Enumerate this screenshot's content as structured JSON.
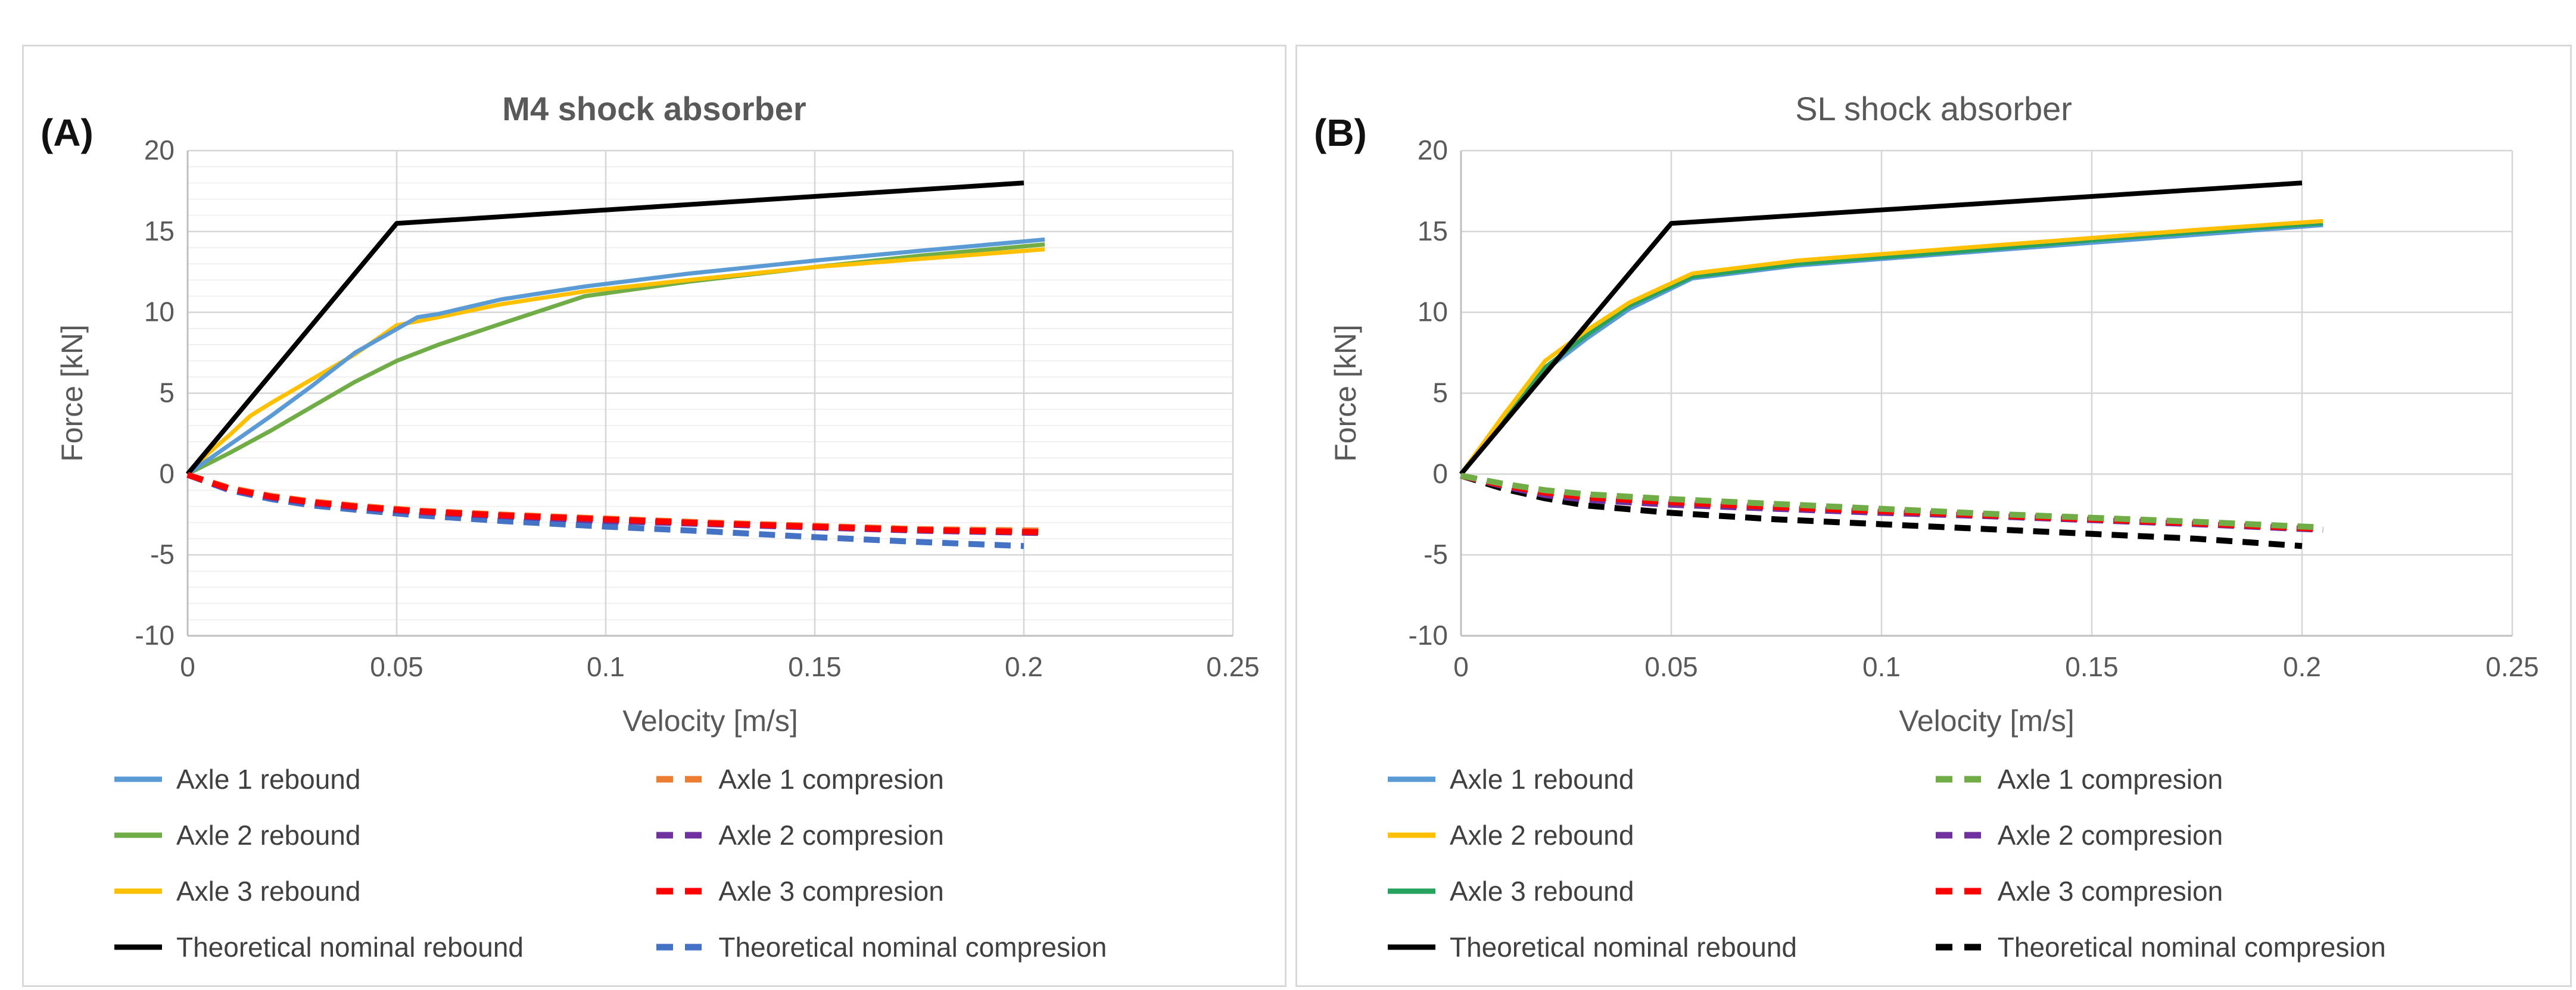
{
  "figure": {
    "background": "#ffffff",
    "panel_border_color": "#d9d9d9"
  },
  "chart_data": [
    {
      "id": "m4",
      "panel_label": "(A)",
      "type": "line",
      "title": "M4 shock absorber",
      "title_bold": true,
      "xlabel": "Velocity [m/s]",
      "ylabel": "Force [kN]",
      "xlim": [
        0,
        0.25
      ],
      "ylim": [
        -10,
        20
      ],
      "xticks": [
        0,
        0.05,
        0.1,
        0.15,
        0.2,
        0.25
      ],
      "xtick_labels": [
        "0",
        "0.05",
        "0.1",
        "0.15",
        "0.2",
        "0.25"
      ],
      "yticks": [
        20,
        15,
        10,
        5,
        0,
        -5,
        -10
      ],
      "ytick_labels": [
        "20",
        "15",
        "10",
        "5",
        "0",
        "-5",
        "-10"
      ],
      "grid": {
        "major": true,
        "minor_horizontal": true,
        "minor_step": 1,
        "legend_position": "bottom-two-columns"
      },
      "series": [
        {
          "id": "axle2-rebound",
          "name": "Axle 2 rebound",
          "color": "#70AD47",
          "style": "solid",
          "width": 7,
          "points": [
            [
              0,
              0
            ],
            [
              0.01,
              1.3
            ],
            [
              0.02,
              2.7
            ],
            [
              0.03,
              4.2
            ],
            [
              0.04,
              5.7
            ],
            [
              0.05,
              7.0
            ],
            [
              0.06,
              8.0
            ],
            [
              0.075,
              9.3
            ],
            [
              0.095,
              11.0
            ],
            [
              0.12,
              11.9
            ],
            [
              0.15,
              12.8
            ],
            [
              0.175,
              13.5
            ],
            [
              0.205,
              14.2
            ]
          ]
        },
        {
          "id": "axle3-rebound",
          "name": "Axle 3 rebound",
          "color": "#FFC000",
          "style": "solid",
          "width": 7,
          "points": [
            [
              0,
              0
            ],
            [
              0.005,
              1.3
            ],
            [
              0.01,
              2.4
            ],
            [
              0.015,
              3.6
            ],
            [
              0.02,
              4.4
            ],
            [
              0.03,
              5.9
            ],
            [
              0.04,
              7.4
            ],
            [
              0.05,
              9.2
            ],
            [
              0.06,
              9.7
            ],
            [
              0.075,
              10.5
            ],
            [
              0.095,
              11.3
            ],
            [
              0.12,
              12.0
            ],
            [
              0.15,
              12.8
            ],
            [
              0.175,
              13.3
            ],
            [
              0.205,
              13.9
            ]
          ]
        },
        {
          "id": "axle1-rebound",
          "name": "Axle 1 rebound",
          "color": "#5B9BD5",
          "style": "solid",
          "width": 7,
          "points": [
            [
              0,
              0
            ],
            [
              0.005,
              0.9
            ],
            [
              0.01,
              1.8
            ],
            [
              0.015,
              2.7
            ],
            [
              0.02,
              3.6
            ],
            [
              0.03,
              5.5
            ],
            [
              0.04,
              7.5
            ],
            [
              0.055,
              9.7
            ],
            [
              0.06,
              9.9
            ],
            [
              0.075,
              10.8
            ],
            [
              0.095,
              11.6
            ],
            [
              0.12,
              12.4
            ],
            [
              0.15,
              13.2
            ],
            [
              0.175,
              13.8
            ],
            [
              0.205,
              14.5
            ]
          ]
        },
        {
          "id": "theoretical-rebound",
          "name": "Theoretical nominal rebound",
          "color": "#000000",
          "style": "solid",
          "width": 8,
          "points": [
            [
              0,
              0
            ],
            [
              0.05,
              15.5
            ],
            [
              0.2,
              18
            ]
          ]
        },
        {
          "id": "theoretical-compresion",
          "name": "Theoretical nominal compresion",
          "color": "#4472C4",
          "style": "dashed",
          "width": 10,
          "points": [
            [
              0,
              -0.05
            ],
            [
              0.01,
              -1.0
            ],
            [
              0.02,
              -1.55
            ],
            [
              0.03,
              -1.95
            ],
            [
              0.04,
              -2.2
            ],
            [
              0.055,
              -2.55
            ],
            [
              0.075,
              -2.9
            ],
            [
              0.1,
              -3.25
            ],
            [
              0.125,
              -3.55
            ],
            [
              0.15,
              -3.9
            ],
            [
              0.175,
              -4.2
            ],
            [
              0.2,
              -4.45
            ]
          ]
        },
        {
          "id": "axle2-compresion",
          "name": "Axle 2 compresion",
          "color": "#7030A0",
          "style": "dashed",
          "width": 10,
          "points": [
            [
              0,
              -0.05
            ],
            [
              0.01,
              -0.95
            ],
            [
              0.02,
              -1.45
            ],
            [
              0.03,
              -1.8
            ],
            [
              0.04,
              -2.05
            ],
            [
              0.055,
              -2.35
            ],
            [
              0.075,
              -2.6
            ],
            [
              0.1,
              -2.9
            ],
            [
              0.125,
              -3.1
            ],
            [
              0.15,
              -3.3
            ],
            [
              0.175,
              -3.5
            ],
            [
              0.205,
              -3.65
            ]
          ]
        },
        {
          "id": "axle1-compresion",
          "name": "Axle 1 compresion",
          "color": "#ED7D31",
          "style": "dashed",
          "width": 10,
          "points": [
            [
              0,
              -0.05
            ],
            [
              0.01,
              -0.85
            ],
            [
              0.02,
              -1.35
            ],
            [
              0.03,
              -1.7
            ],
            [
              0.04,
              -1.95
            ],
            [
              0.055,
              -2.25
            ],
            [
              0.075,
              -2.5
            ],
            [
              0.1,
              -2.75
            ],
            [
              0.125,
              -3.0
            ],
            [
              0.15,
              -3.2
            ],
            [
              0.175,
              -3.4
            ],
            [
              0.205,
              -3.5
            ]
          ]
        },
        {
          "id": "axle3-compresion",
          "name": "Axle 3 compresion",
          "color": "#FF0000",
          "style": "dashed",
          "width": 10,
          "points": [
            [
              0,
              -0.05
            ],
            [
              0.01,
              -0.9
            ],
            [
              0.02,
              -1.4
            ],
            [
              0.03,
              -1.75
            ],
            [
              0.04,
              -2.0
            ],
            [
              0.055,
              -2.3
            ],
            [
              0.075,
              -2.55
            ],
            [
              0.1,
              -2.8
            ],
            [
              0.125,
              -3.05
            ],
            [
              0.15,
              -3.25
            ],
            [
              0.175,
              -3.45
            ],
            [
              0.205,
              -3.6
            ]
          ]
        }
      ],
      "legend_columns": [
        [
          "axle1-rebound",
          "axle2-rebound",
          "axle3-rebound",
          "theoretical-rebound"
        ],
        [
          "axle1-compresion",
          "axle2-compresion",
          "axle3-compresion",
          "theoretical-compresion"
        ]
      ]
    },
    {
      "id": "sl",
      "panel_label": "(B)",
      "type": "line",
      "title": "SL shock absorber",
      "title_bold": false,
      "xlabel": "Velocity [m/s]",
      "ylabel": "Force [kN]",
      "xlim": [
        0,
        0.25
      ],
      "ylim": [
        -10,
        20
      ],
      "xticks": [
        0,
        0.05,
        0.1,
        0.15,
        0.2,
        0.25
      ],
      "xtick_labels": [
        "0",
        "0.05",
        "0.1",
        "0.15",
        "0.2",
        "0.25"
      ],
      "yticks": [
        20,
        15,
        10,
        5,
        0,
        -5,
        -10
      ],
      "ytick_labels": [
        "20",
        "15",
        "10",
        "5",
        "0",
        "-5",
        "-10"
      ],
      "grid": {
        "major": true,
        "minor_horizontal": false,
        "minor_step": 1,
        "legend_position": "bottom-two-columns"
      },
      "series": [
        {
          "id": "axle1-rebound",
          "name": "Axle 1 rebound",
          "color": "#5B9BD5",
          "style": "solid",
          "width": 7,
          "points": [
            [
              0,
              0
            ],
            [
              0.01,
              3.2
            ],
            [
              0.02,
              6.4
            ],
            [
              0.03,
              8.4
            ],
            [
              0.04,
              10.2
            ],
            [
              0.055,
              12.1
            ],
            [
              0.08,
              12.9
            ],
            [
              0.1,
              13.3
            ],
            [
              0.125,
              13.8
            ],
            [
              0.15,
              14.3
            ],
            [
              0.175,
              14.8
            ],
            [
              0.205,
              15.4
            ]
          ]
        },
        {
          "id": "axle3-rebound",
          "name": "Axle 3 rebound",
          "color": "#27A35F",
          "style": "solid",
          "width": 7,
          "points": [
            [
              0,
              0
            ],
            [
              0.01,
              3.4
            ],
            [
              0.02,
              6.6
            ],
            [
              0.03,
              8.6
            ],
            [
              0.04,
              10.4
            ],
            [
              0.055,
              12.2
            ],
            [
              0.08,
              13.0
            ],
            [
              0.1,
              13.4
            ],
            [
              0.125,
              13.9
            ],
            [
              0.15,
              14.45
            ],
            [
              0.175,
              14.95
            ],
            [
              0.205,
              15.5
            ]
          ]
        },
        {
          "id": "axle2-rebound",
          "name": "Axle 2 rebound",
          "color": "#FFC000",
          "style": "solid",
          "width": 7,
          "points": [
            [
              0,
              0
            ],
            [
              0.01,
              3.6
            ],
            [
              0.02,
              7.0
            ],
            [
              0.03,
              8.9
            ],
            [
              0.04,
              10.6
            ],
            [
              0.055,
              12.4
            ],
            [
              0.08,
              13.2
            ],
            [
              0.1,
              13.6
            ],
            [
              0.125,
              14.1
            ],
            [
              0.15,
              14.6
            ],
            [
              0.175,
              15.1
            ],
            [
              0.205,
              15.65
            ]
          ]
        },
        {
          "id": "theoretical-rebound",
          "name": "Theoretical nominal rebound",
          "color": "#000000",
          "style": "solid",
          "width": 8,
          "points": [
            [
              0,
              0
            ],
            [
              0.05,
              15.5
            ],
            [
              0.2,
              18
            ]
          ]
        },
        {
          "id": "theoretical-compresion",
          "name": "Theoretical nominal compresion",
          "color": "#000000",
          "style": "dashed",
          "width": 10,
          "points": [
            [
              0,
              -0.1
            ],
            [
              0.01,
              -0.9
            ],
            [
              0.02,
              -1.5
            ],
            [
              0.03,
              -1.95
            ],
            [
              0.05,
              -2.4
            ],
            [
              0.075,
              -2.8
            ],
            [
              0.1,
              -3.1
            ],
            [
              0.125,
              -3.4
            ],
            [
              0.15,
              -3.7
            ],
            [
              0.175,
              -4.0
            ],
            [
              0.2,
              -4.45
            ]
          ]
        },
        {
          "id": "axle2-compresion",
          "name": "Axle 2 compresion",
          "color": "#7030A0",
          "style": "dashed",
          "width": 10,
          "points": [
            [
              0,
              -0.1
            ],
            [
              0.01,
              -0.75
            ],
            [
              0.02,
              -1.3
            ],
            [
              0.03,
              -1.6
            ],
            [
              0.05,
              -1.9
            ],
            [
              0.075,
              -2.15
            ],
            [
              0.1,
              -2.4
            ],
            [
              0.125,
              -2.6
            ],
            [
              0.15,
              -2.85
            ],
            [
              0.175,
              -3.1
            ],
            [
              0.205,
              -3.45
            ]
          ]
        },
        {
          "id": "axle3-compresion",
          "name": "Axle 3 compresion",
          "color": "#FF0000",
          "style": "dashed",
          "width": 10,
          "points": [
            [
              0,
              -0.1
            ],
            [
              0.01,
              -0.7
            ],
            [
              0.02,
              -1.15
            ],
            [
              0.03,
              -1.45
            ],
            [
              0.05,
              -1.75
            ],
            [
              0.075,
              -2.05
            ],
            [
              0.1,
              -2.3
            ],
            [
              0.125,
              -2.55
            ],
            [
              0.15,
              -2.8
            ],
            [
              0.175,
              -3.05
            ],
            [
              0.205,
              -3.4
            ]
          ]
        },
        {
          "id": "axle1-compresion",
          "name": "Axle 1 compresion",
          "color": "#70AD47",
          "style": "dashed",
          "width": 10,
          "points": [
            [
              0,
              -0.1
            ],
            [
              0.01,
              -0.6
            ],
            [
              0.02,
              -1.0
            ],
            [
              0.03,
              -1.25
            ],
            [
              0.05,
              -1.55
            ],
            [
              0.075,
              -1.85
            ],
            [
              0.1,
              -2.15
            ],
            [
              0.125,
              -2.45
            ],
            [
              0.15,
              -2.7
            ],
            [
              0.175,
              -2.95
            ],
            [
              0.205,
              -3.3
            ]
          ]
        }
      ],
      "legend_columns": [
        [
          "axle1-rebound",
          "axle2-rebound",
          "axle3-rebound",
          "theoretical-rebound"
        ],
        [
          "axle1-compresion",
          "axle2-compresion",
          "axle3-compresion",
          "theoretical-compresion"
        ]
      ]
    }
  ]
}
